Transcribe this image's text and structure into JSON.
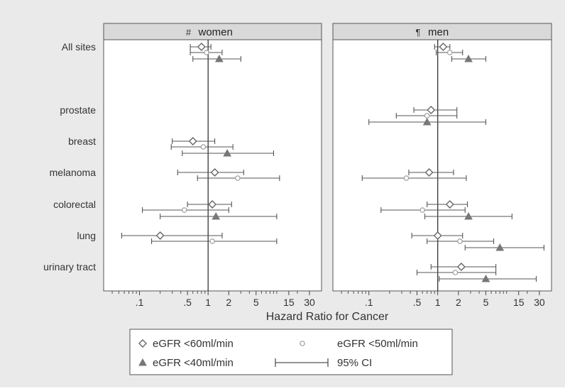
{
  "chart_data": {
    "type": "scatter",
    "subtype": "forest-plot",
    "xlabel": "Hazard Ratio for Cancer",
    "x_scale": "log",
    "x_ticks": [
      0.1,
      0.5,
      1,
      2,
      5,
      15,
      30
    ],
    "x_tick_labels": [
      ".1",
      ".5",
      "1",
      "2",
      "5",
      "15",
      "30"
    ],
    "xlim": [
      0.03,
      45
    ],
    "reference_line": 1,
    "categories": [
      "All sites",
      "prostate",
      "breast",
      "melanoma",
      "colorectal",
      "lung",
      "urinary tract"
    ],
    "series": [
      {
        "name": "eGFR <60ml/min",
        "marker": "diamond-open",
        "color": "#666666"
      },
      {
        "name": "eGFR <50ml/min",
        "marker": "circle-open",
        "color": "#9a9a9a"
      },
      {
        "name": "eGFR <40ml/min",
        "marker": "triangle-filled",
        "color": "#777777"
      }
    ],
    "ci_label": "95% CI",
    "legend_position": "bottom",
    "panels": [
      {
        "title": "women",
        "glyph": "#",
        "rows": [
          {
            "category": "All sites",
            "series": "eGFR <60ml/min",
            "hr": 0.8,
            "lo": 0.55,
            "hi": 1.1
          },
          {
            "category": "All sites",
            "series": "eGFR <50ml/min",
            "hr": 0.95,
            "lo": 0.55,
            "hi": 1.6
          },
          {
            "category": "All sites",
            "series": "eGFR <40ml/min",
            "hr": 1.45,
            "lo": 0.6,
            "hi": 3.0
          },
          {
            "category": "breast",
            "series": "eGFR <60ml/min",
            "hr": 0.6,
            "lo": 0.3,
            "hi": 1.25
          },
          {
            "category": "breast",
            "series": "eGFR <50ml/min",
            "hr": 0.85,
            "lo": 0.29,
            "hi": 2.3
          },
          {
            "category": "breast",
            "series": "eGFR <40ml/min",
            "hr": 1.9,
            "lo": 0.42,
            "hi": 9.0
          },
          {
            "category": "melanoma",
            "series": "eGFR <60ml/min",
            "hr": 1.25,
            "lo": 0.36,
            "hi": 3.3
          },
          {
            "category": "melanoma",
            "series": "eGFR <50ml/min",
            "hr": 2.7,
            "lo": 0.7,
            "hi": 11.0
          },
          {
            "category": "colorectal",
            "series": "eGFR <60ml/min",
            "hr": 1.15,
            "lo": 0.5,
            "hi": 2.2
          },
          {
            "category": "colorectal",
            "series": "eGFR <50ml/min",
            "hr": 0.45,
            "lo": 0.11,
            "hi": 2.0
          },
          {
            "category": "colorectal",
            "series": "eGFR <40ml/min",
            "hr": 1.3,
            "lo": 0.2,
            "hi": 10.0
          },
          {
            "category": "lung",
            "series": "eGFR <60ml/min",
            "hr": 0.2,
            "lo": 0.055,
            "hi": 1.6
          },
          {
            "category": "lung",
            "series": "eGFR <50ml/min",
            "hr": 1.15,
            "lo": 0.15,
            "hi": 10.0
          }
        ]
      },
      {
        "title": "men",
        "glyph": "¶",
        "rows": [
          {
            "category": "All sites",
            "series": "eGFR <60ml/min",
            "hr": 1.2,
            "lo": 0.9,
            "hi": 1.5
          },
          {
            "category": "All sites",
            "series": "eGFR <50ml/min",
            "hr": 1.5,
            "lo": 0.95,
            "hi": 2.3
          },
          {
            "category": "All sites",
            "series": "eGFR <40ml/min",
            "hr": 2.8,
            "lo": 1.6,
            "hi": 5.0
          },
          {
            "category": "prostate",
            "series": "eGFR <60ml/min",
            "hr": 0.8,
            "lo": 0.45,
            "hi": 1.9
          },
          {
            "category": "prostate",
            "series": "eGFR <50ml/min",
            "hr": 0.7,
            "lo": 0.25,
            "hi": 1.9
          },
          {
            "category": "prostate",
            "series": "eGFR <40ml/min",
            "hr": 0.7,
            "lo": 0.1,
            "hi": 5.0
          },
          {
            "category": "melanoma",
            "series": "eGFR <60ml/min",
            "hr": 0.75,
            "lo": 0.38,
            "hi": 1.7
          },
          {
            "category": "melanoma",
            "series": "eGFR <50ml/min",
            "hr": 0.35,
            "lo": 0.08,
            "hi": 2.6
          },
          {
            "category": "colorectal",
            "series": "eGFR <60ml/min",
            "hr": 1.5,
            "lo": 0.7,
            "hi": 2.7
          },
          {
            "category": "colorectal",
            "series": "eGFR <50ml/min",
            "hr": 0.6,
            "lo": 0.15,
            "hi": 2.5
          },
          {
            "category": "colorectal",
            "series": "eGFR <40ml/min",
            "hr": 2.8,
            "lo": 0.65,
            "hi": 12.0
          },
          {
            "category": "lung",
            "series": "eGFR <60ml/min",
            "hr": 1.0,
            "lo": 0.42,
            "hi": 2.3
          },
          {
            "category": "lung",
            "series": "eGFR <50ml/min",
            "hr": 2.1,
            "lo": 0.7,
            "hi": 6.5
          },
          {
            "category": "lung",
            "series": "eGFR <40ml/min",
            "hr": 8.0,
            "lo": 2.5,
            "hi": 35.0
          },
          {
            "category": "urinary tract",
            "series": "eGFR <60ml/min",
            "hr": 2.2,
            "lo": 0.8,
            "hi": 7.0
          },
          {
            "category": "urinary tract",
            "series": "eGFR <50ml/min",
            "hr": 1.8,
            "lo": 0.5,
            "hi": 7.0
          },
          {
            "category": "urinary tract",
            "series": "eGFR <40ml/min",
            "hr": 5.0,
            "lo": 1.05,
            "hi": 27.0
          }
        ]
      }
    ]
  }
}
